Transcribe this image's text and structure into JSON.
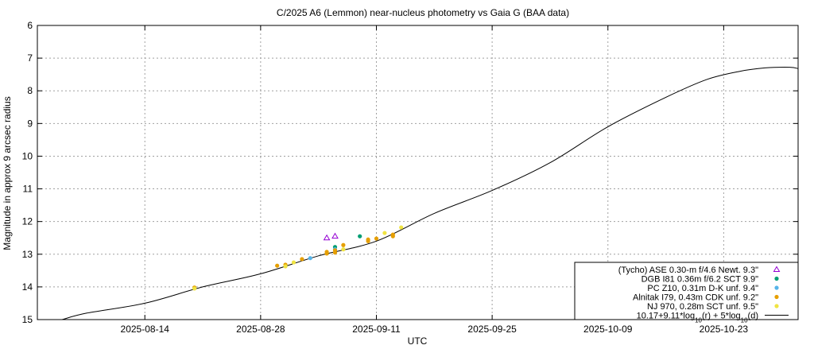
{
  "chart_data": {
    "type": "scatter",
    "title": "C/2025 A6 (Lemmon) near-nucleus photometry vs Gaia G (BAA data)",
    "xlabel": "UTC",
    "ylabel": "Magnitude in approx 9 arcsec radius",
    "xlim": [
      "2025-08-01",
      "2025-11-01"
    ],
    "ylim": [
      15,
      6
    ],
    "y_inverted": true,
    "grid": true,
    "legend_position": "bottom-right",
    "x_ticks": [
      "2025-08-14",
      "2025-08-28",
      "2025-09-11",
      "2025-09-25",
      "2025-10-09",
      "2025-10-23"
    ],
    "y_ticks": [
      6,
      7,
      8,
      9,
      10,
      11,
      12,
      13,
      14,
      15
    ],
    "series": [
      {
        "name": "(Tycho) ASE 0.30-m f/4.6 Newt. 9.3\"",
        "marker": "triangle-open",
        "color": "#9400d3",
        "points": [
          [
            "2025-09-05",
            12.5
          ],
          [
            "2025-09-06",
            12.45
          ]
        ]
      },
      {
        "name": "DGB I81 0.36m f/6.2 SCT 9.9\"",
        "marker": "circle",
        "color": "#009e73",
        "points": [
          [
            "2025-09-06",
            12.78
          ],
          [
            "2025-09-09",
            12.45
          ]
        ]
      },
      {
        "name": "PC Z10, 0.31m D-K unf. 9.4\"",
        "marker": "circle",
        "color": "#56b4e9",
        "points": [
          [
            "2025-09-03",
            13.12
          ],
          [
            "2025-09-06",
            12.85
          ]
        ]
      },
      {
        "name": "Alnitak I79, 0.43m CDK unf. 9.2\"",
        "marker": "circle",
        "color": "#e69f00",
        "points": [
          [
            "2025-08-20",
            14.02
          ],
          [
            "2025-08-30",
            13.35
          ],
          [
            "2025-08-31",
            13.32
          ],
          [
            "2025-09-02",
            13.15
          ],
          [
            "2025-09-05",
            12.98
          ],
          [
            "2025-09-05",
            12.93
          ],
          [
            "2025-09-06",
            12.95
          ],
          [
            "2025-09-06",
            12.88
          ],
          [
            "2025-09-07",
            12.72
          ],
          [
            "2025-09-10",
            12.6
          ],
          [
            "2025-09-10",
            12.55
          ],
          [
            "2025-09-11",
            12.52
          ],
          [
            "2025-09-13",
            12.45
          ],
          [
            "2025-09-13",
            12.4
          ]
        ]
      },
      {
        "name": "NJ 970, 0.28m SCT unf. 9.5\"",
        "marker": "circle",
        "color": "#f0e442",
        "points": [
          [
            "2025-08-20",
            14.05
          ],
          [
            "2025-08-31",
            13.37
          ],
          [
            "2025-09-01",
            13.25
          ],
          [
            "2025-09-07",
            12.85
          ],
          [
            "2025-09-12",
            12.35
          ],
          [
            "2025-09-14",
            12.18
          ]
        ]
      }
    ],
    "model": {
      "name": "10.17+9.11*log10(r) + 5*log10(d)",
      "color": "#000000",
      "curve": [
        [
          "2025-08-04",
          15.0
        ],
        [
          "2025-08-07",
          14.8
        ],
        [
          "2025-08-14",
          14.5
        ],
        [
          "2025-08-21",
          14.0
        ],
        [
          "2025-08-28",
          13.6
        ],
        [
          "2025-09-04",
          13.05
        ],
        [
          "2025-09-11",
          12.6
        ],
        [
          "2025-09-18",
          11.75
        ],
        [
          "2025-09-25",
          11.05
        ],
        [
          "2025-10-02",
          10.2
        ],
        [
          "2025-10-09",
          9.1
        ],
        [
          "2025-10-16",
          8.2
        ],
        [
          "2025-10-21",
          7.65
        ],
        [
          "2025-10-25",
          7.4
        ],
        [
          "2025-10-28",
          7.3
        ],
        [
          "2025-10-31",
          7.28
        ],
        [
          "2025-11-01",
          7.32
        ]
      ]
    }
  }
}
